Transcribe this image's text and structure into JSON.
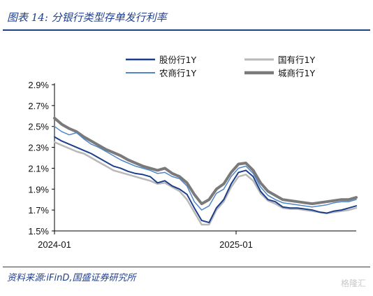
{
  "header": {
    "title": "图表 14:  分银行类型存单发行利率"
  },
  "footer": {
    "source": "资料来源:iFinD,国盛证券研究所",
    "watermark": "格隆汇"
  },
  "chart_data": {
    "type": "line",
    "title": "图表 14:  分银行类型存单发行利率",
    "xlabel": "",
    "ylabel": "",
    "x_ticks": [
      "2024-01",
      "2025-01"
    ],
    "y_ticks": [
      "2.9%",
      "2.7%",
      "2.5%",
      "2.3%",
      "2.1%",
      "1.9%",
      "1.7%",
      "1.5%"
    ],
    "ylim": [
      1.5,
      2.9
    ],
    "legend_position": "top",
    "colors": {
      "股份行1Y": "#1c3f8c",
      "国有行1Y": "#b8b8b8",
      "农商行1Y": "#4f86c6",
      "城商行1Y": "#7a7a7a"
    },
    "series": [
      {
        "name": "股份行1Y",
        "values": [
          2.4,
          2.36,
          2.33,
          2.3,
          2.27,
          2.24,
          2.2,
          2.16,
          2.12,
          2.1,
          2.07,
          2.05,
          2.04,
          2.02,
          1.96,
          1.98,
          1.93,
          1.9,
          1.85,
          1.72,
          1.6,
          1.58,
          1.72,
          1.8,
          1.95,
          2.06,
          2.08,
          2.02,
          1.88,
          1.8,
          1.78,
          1.73,
          1.72,
          1.72,
          1.71,
          1.7,
          1.68,
          1.67,
          1.69,
          1.7,
          1.72,
          1.74
        ]
      },
      {
        "name": "国有行1Y",
        "values": [
          2.35,
          2.32,
          2.29,
          2.26,
          2.24,
          2.2,
          2.16,
          2.12,
          2.08,
          2.06,
          2.04,
          2.02,
          2.0,
          1.98,
          1.95,
          1.96,
          1.92,
          1.88,
          1.8,
          1.68,
          1.56,
          1.56,
          1.7,
          1.78,
          1.92,
          2.02,
          2.04,
          1.98,
          1.86,
          1.79,
          1.76,
          1.72,
          1.71,
          1.71,
          1.7,
          1.69,
          1.68,
          1.67,
          1.68,
          1.69,
          1.7,
          1.72
        ]
      },
      {
        "name": "农商行1Y",
        "values": [
          2.5,
          2.45,
          2.42,
          2.44,
          2.38,
          2.33,
          2.3,
          2.26,
          2.22,
          2.18,
          2.15,
          2.12,
          2.1,
          2.08,
          2.05,
          2.06,
          2.02,
          2.0,
          1.93,
          1.78,
          1.7,
          1.74,
          1.86,
          1.9,
          2.02,
          2.1,
          2.12,
          2.05,
          1.92,
          1.84,
          1.8,
          1.77,
          1.76,
          1.75,
          1.74,
          1.73,
          1.74,
          1.75,
          1.77,
          1.78,
          1.78,
          1.8
        ]
      },
      {
        "name": "城商行1Y",
        "values": [
          2.58,
          2.52,
          2.48,
          2.45,
          2.4,
          2.36,
          2.32,
          2.28,
          2.25,
          2.22,
          2.18,
          2.15,
          2.12,
          2.1,
          2.08,
          2.1,
          2.05,
          2.02,
          1.96,
          1.85,
          1.76,
          1.8,
          1.9,
          1.95,
          2.06,
          2.14,
          2.15,
          2.08,
          1.96,
          1.88,
          1.84,
          1.8,
          1.79,
          1.78,
          1.77,
          1.76,
          1.77,
          1.78,
          1.79,
          1.8,
          1.8,
          1.82
        ]
      }
    ]
  }
}
